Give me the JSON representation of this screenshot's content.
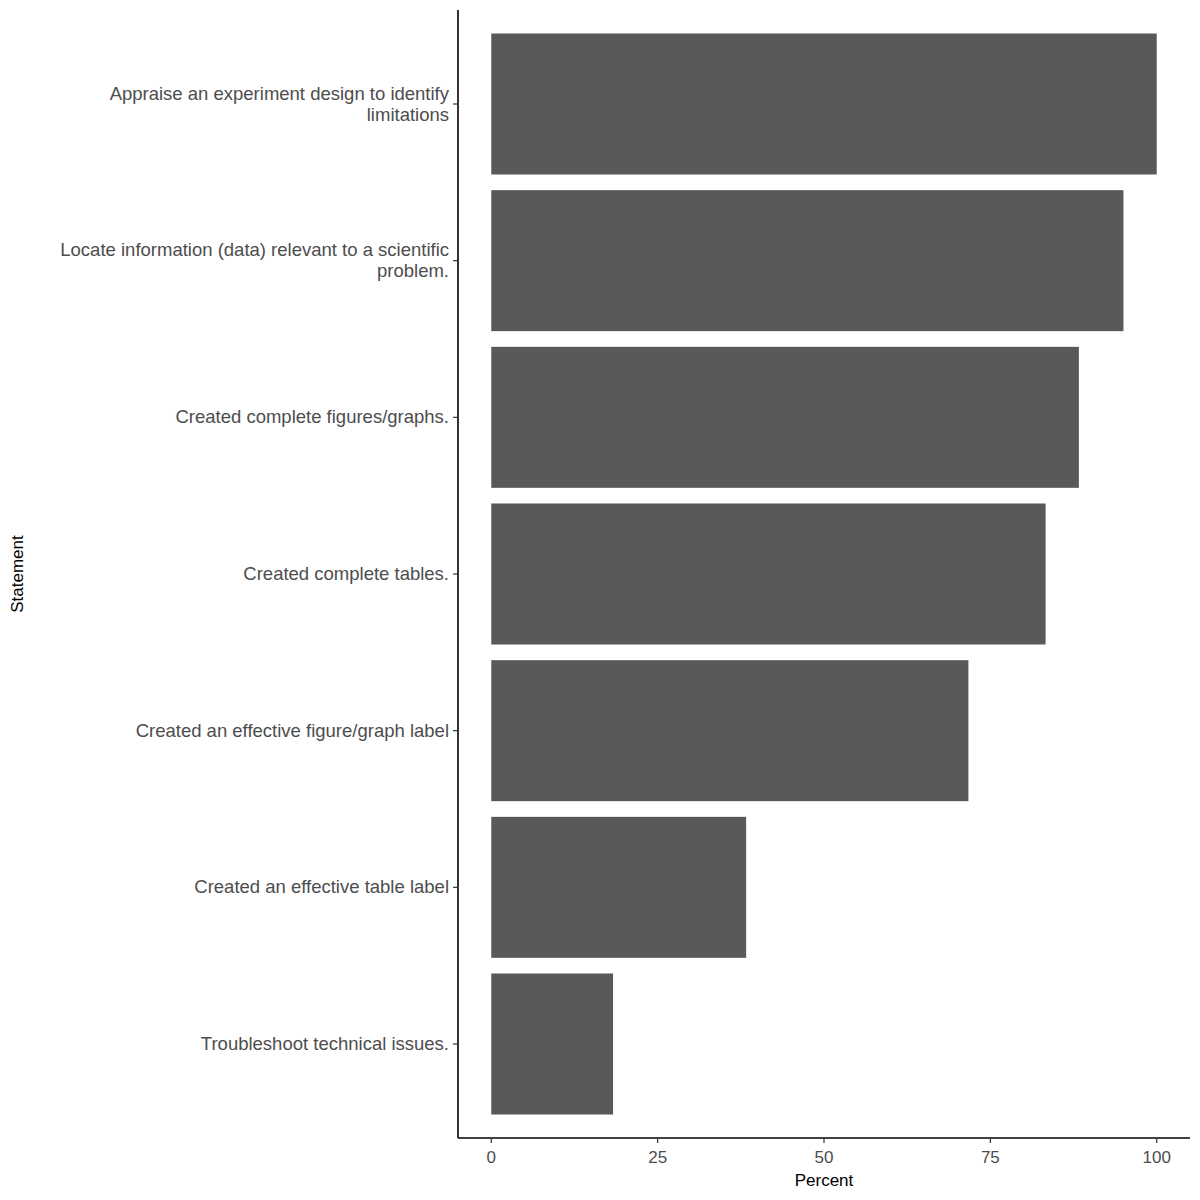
{
  "chart_data": {
    "type": "bar",
    "orientation": "horizontal",
    "x_label": "Percent",
    "y_label": "Statement",
    "categories": [
      "Appraise an experiment design to identify\nlimitations",
      "Locate information (data) relevant to a scientific\nproblem.",
      "Created complete figures/graphs.",
      "Created complete tables.",
      "Created an effective figure/graph label",
      "Created an effective table label",
      "Troubleshoot technical issues."
    ],
    "values": [
      100,
      95,
      88.3,
      83.3,
      71.7,
      38.3,
      18.3
    ],
    "color": "#595959",
    "xlim": [
      -5,
      105
    ],
    "xticks": [
      0,
      25,
      50,
      75,
      100
    ],
    "grid": false
  }
}
